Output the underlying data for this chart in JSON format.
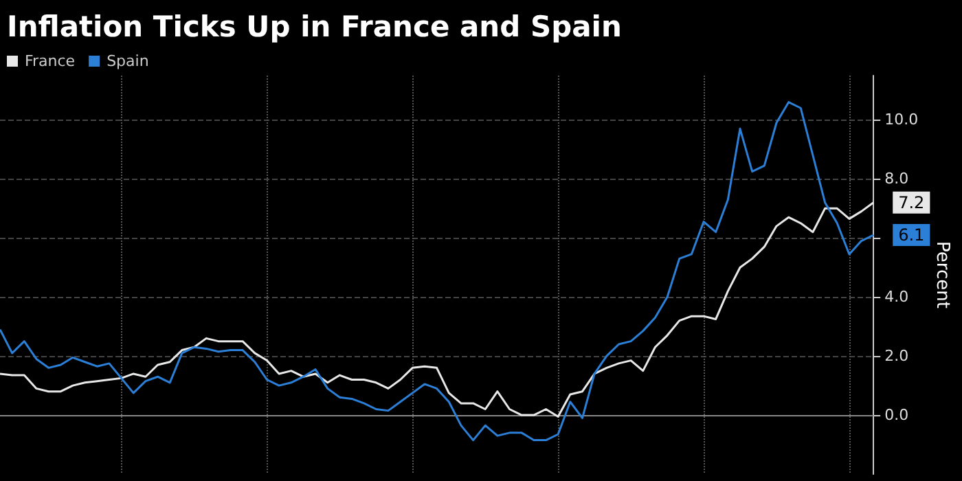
{
  "chart_data": {
    "type": "line",
    "title": "Inflation Ticks Up in France and Spain",
    "ylabel": "Percent",
    "categories": [
      null,
      null,
      null,
      null,
      null,
      null,
      null,
      null,
      null,
      null,
      null,
      null,
      null,
      null,
      null,
      null,
      null,
      null,
      null,
      null,
      null,
      null,
      null,
      null,
      null,
      null,
      null,
      null,
      null,
      null,
      null,
      null,
      null,
      null,
      null,
      null,
      null,
      null,
      null,
      null,
      null,
      null,
      null,
      null,
      null,
      null,
      null,
      null,
      null,
      null,
      null,
      null,
      null,
      null,
      null,
      null,
      null,
      null,
      null,
      null,
      null,
      null,
      null,
      null,
      null,
      null,
      null,
      null,
      null,
      null,
      null,
      null,
      null
    ],
    "series": [
      {
        "name": "France",
        "color": "#e8e8e8",
        "values": [
          1.4,
          1.35,
          1.35,
          0.9,
          0.8,
          0.8,
          1.0,
          1.1,
          1.15,
          1.2,
          1.25,
          1.4,
          1.3,
          1.7,
          1.8,
          2.2,
          2.3,
          2.6,
          2.5,
          2.5,
          2.5,
          2.1,
          1.85,
          1.4,
          1.5,
          1.3,
          1.4,
          1.1,
          1.35,
          1.2,
          1.2,
          1.1,
          0.9,
          1.2,
          1.6,
          1.65,
          1.6,
          0.75,
          0.4,
          0.4,
          0.2,
          0.8,
          0.2,
          0.0,
          0.0,
          0.2,
          -0.05,
          0.7,
          0.8,
          1.4,
          1.6,
          1.75,
          1.85,
          1.5,
          2.3,
          2.7,
          3.2,
          3.35,
          3.35,
          3.25,
          4.2,
          5.0,
          5.3,
          5.7,
          6.4,
          6.7,
          6.5,
          6.2,
          7.0,
          7.0,
          6.65,
          6.9,
          7.2
        ],
        "value_labels": [
          null,
          null,
          null,
          null,
          null,
          null,
          null,
          null,
          null,
          null,
          null,
          null,
          null,
          null,
          null,
          null,
          null,
          null,
          null,
          null,
          null,
          null,
          null,
          null,
          null,
          null,
          null,
          null,
          null,
          null,
          null,
          null,
          null,
          null,
          null,
          null,
          null,
          null,
          null,
          null,
          null,
          null,
          null,
          null,
          null,
          null,
          null,
          null,
          null,
          null,
          null,
          null,
          null,
          null,
          null,
          null,
          null,
          null,
          null,
          null,
          null,
          null,
          null,
          null,
          null,
          null,
          null,
          null,
          null,
          null,
          null,
          null,
          "7.2"
        ]
      },
      {
        "name": "Spain",
        "color": "#2b7fd6",
        "values": [
          2.9,
          2.1,
          2.5,
          1.9,
          1.6,
          1.7,
          1.95,
          1.8,
          1.65,
          1.75,
          1.25,
          0.75,
          1.15,
          1.3,
          1.1,
          2.1,
          2.3,
          2.25,
          2.15,
          2.2,
          2.2,
          1.8,
          1.2,
          1.0,
          1.1,
          1.3,
          1.55,
          0.9,
          0.6,
          0.55,
          0.4,
          0.2,
          0.15,
          0.45,
          0.75,
          1.05,
          0.9,
          0.45,
          -0.35,
          -0.85,
          -0.35,
          -0.7,
          -0.6,
          -0.6,
          -0.85,
          -0.85,
          -0.65,
          0.45,
          -0.1,
          1.4,
          2.0,
          2.4,
          2.5,
          2.85,
          3.3,
          4.0,
          5.3,
          5.45,
          6.55,
          6.2,
          7.3,
          9.7,
          8.25,
          8.45,
          9.9,
          10.6,
          10.4,
          8.8,
          7.2,
          6.5,
          5.45,
          5.9,
          6.1
        ],
        "value_labels": [
          null,
          null,
          null,
          null,
          null,
          null,
          null,
          null,
          null,
          null,
          null,
          null,
          null,
          null,
          null,
          null,
          null,
          null,
          null,
          null,
          null,
          null,
          null,
          null,
          null,
          null,
          null,
          null,
          null,
          null,
          null,
          null,
          null,
          null,
          null,
          null,
          null,
          null,
          null,
          null,
          null,
          null,
          null,
          null,
          null,
          null,
          null,
          null,
          null,
          null,
          null,
          null,
          null,
          null,
          null,
          null,
          null,
          null,
          null,
          null,
          null,
          null,
          null,
          null,
          null,
          null,
          null,
          null,
          null,
          null,
          null,
          null,
          "6.1"
        ]
      }
    ],
    "ylim": [
      -2,
      11.5
    ],
    "yticks": [
      {
        "value": 0,
        "label": "0.0"
      },
      {
        "value": 2,
        "label": "2.0"
      },
      {
        "value": 4,
        "label": "4.0"
      },
      {
        "value": 6,
        "label": null
      },
      {
        "value": 8,
        "label": "8.0"
      },
      {
        "value": 10,
        "label": "10.0"
      }
    ],
    "grid": true,
    "legend": "top left",
    "line_style": "solid"
  }
}
